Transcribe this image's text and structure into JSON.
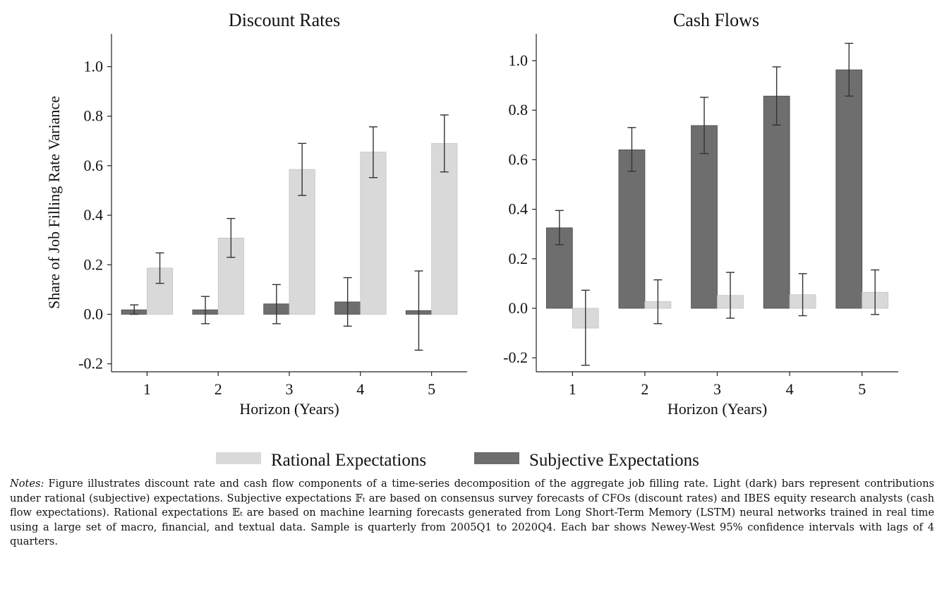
{
  "chart_data": [
    {
      "type": "bar",
      "title": "Discount Rates",
      "xlabel": "Horizon (Years)",
      "ylabel": "Share of Job Filling Rate Variance",
      "categories": [
        "1",
        "2",
        "3",
        "4",
        "5"
      ],
      "ylim": [
        -0.25,
        1.12
      ],
      "yticks": [
        -0.2,
        0.0,
        0.2,
        0.4,
        0.6,
        0.8,
        1.0
      ],
      "ytick_labels": [
        "-0.2",
        "0.0",
        "0.2",
        "0.4",
        "0.6",
        "0.8",
        "1.0"
      ],
      "series": [
        {
          "name": "Subjective Expectations",
          "values": [
            0.018,
            0.018,
            0.042,
            0.05,
            0.015
          ],
          "ci_low": [
            0.0,
            -0.038,
            -0.038,
            -0.048,
            -0.145
          ],
          "ci_high": [
            0.038,
            0.072,
            0.12,
            0.148,
            0.175
          ]
        },
        {
          "name": "Rational Expectations",
          "values": [
            0.187,
            0.308,
            0.585,
            0.655,
            0.69
          ],
          "ci_low": [
            0.125,
            0.23,
            0.48,
            0.552,
            0.575
          ],
          "ci_high": [
            0.248,
            0.387,
            0.69,
            0.757,
            0.805
          ]
        }
      ]
    },
    {
      "type": "bar",
      "title": "Cash Flows",
      "xlabel": "Horizon (Years)",
      "ylabel": "",
      "categories": [
        "1",
        "2",
        "3",
        "4",
        "5"
      ],
      "ylim": [
        -0.27,
        1.12
      ],
      "yticks": [
        -0.2,
        0.0,
        0.2,
        0.4,
        0.6,
        0.8,
        1.0
      ],
      "ytick_labels": [
        "-0.2",
        "0.0",
        "0.2",
        "0.4",
        "0.6",
        "0.8",
        "1.0"
      ],
      "series": [
        {
          "name": "Subjective Expectations",
          "values": [
            0.325,
            0.64,
            0.738,
            0.857,
            0.963
          ],
          "ci_low": [
            0.257,
            0.553,
            0.625,
            0.74,
            0.857
          ],
          "ci_high": [
            0.395,
            0.73,
            0.852,
            0.975,
            1.07
          ]
        },
        {
          "name": "Rational Expectations",
          "values": [
            -0.08,
            0.027,
            0.052,
            0.055,
            0.065
          ],
          "ci_low": [
            -0.23,
            -0.062,
            -0.04,
            -0.03,
            -0.025
          ],
          "ci_high": [
            0.073,
            0.115,
            0.145,
            0.14,
            0.155
          ]
        }
      ]
    }
  ],
  "legend": {
    "position": "bottom-center",
    "items": [
      {
        "label": "Rational Expectations",
        "color": "#d9d9d9"
      },
      {
        "label": "Subjective Expectations",
        "color": "#6e6e6e"
      }
    ]
  },
  "colors": {
    "rational": "#d9d9d9",
    "subjective": "#6e6e6e",
    "axis": "#222222"
  },
  "notes": {
    "lead": "Notes:",
    "text": "Figure illustrates discount rate and cash flow components of a time-series decomposition of the aggregate job filling rate. Light (dark) bars represent contributions under rational (subjective) expectations. Subjective expectations 𝔽ₜ are based on consensus survey forecasts of CFOs (discount rates) and IBES equity research analysts (cash flow expectations). Rational expectations 𝔼ₜ are based on machine learning forecasts generated from Long Short-Term Memory (LSTM) neural networks trained in real time using a large set of macro, financial, and textual data. Sample is quarterly from 2005Q1 to 2020Q4. Each bar shows Newey-West 95% confidence intervals with lags of 4 quarters."
  }
}
